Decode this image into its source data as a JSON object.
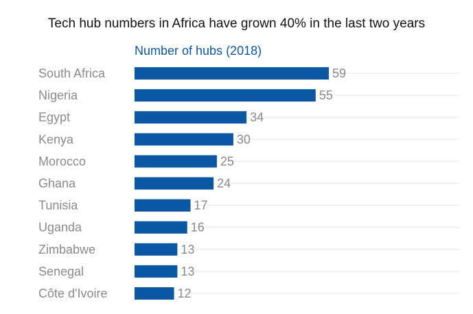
{
  "chart_data": {
    "type": "bar",
    "orientation": "horizontal",
    "title": "Tech hub numbers in Africa have grown 40% in the last two years",
    "categories": [
      "South Africa",
      "Nigeria",
      "Egypt",
      "Kenya",
      "Morocco",
      "Ghana",
      "Tunisia",
      "Uganda",
      "Zimbabwe",
      "Senegal",
      "Côte d'Ivoire"
    ],
    "series": [
      {
        "name": "Number of hubs (2018)",
        "values": [
          59,
          55,
          34,
          30,
          25,
          24,
          17,
          16,
          13,
          13,
          12
        ]
      }
    ],
    "xlim": [
      0,
      59
    ],
    "grid": true,
    "legend": "top-left",
    "colors": {
      "bar": "#0b57a4",
      "series_label": "#0b57a4",
      "labels": "#8a8a8a",
      "title": "#111111",
      "grid": "#e8e8e8"
    }
  }
}
